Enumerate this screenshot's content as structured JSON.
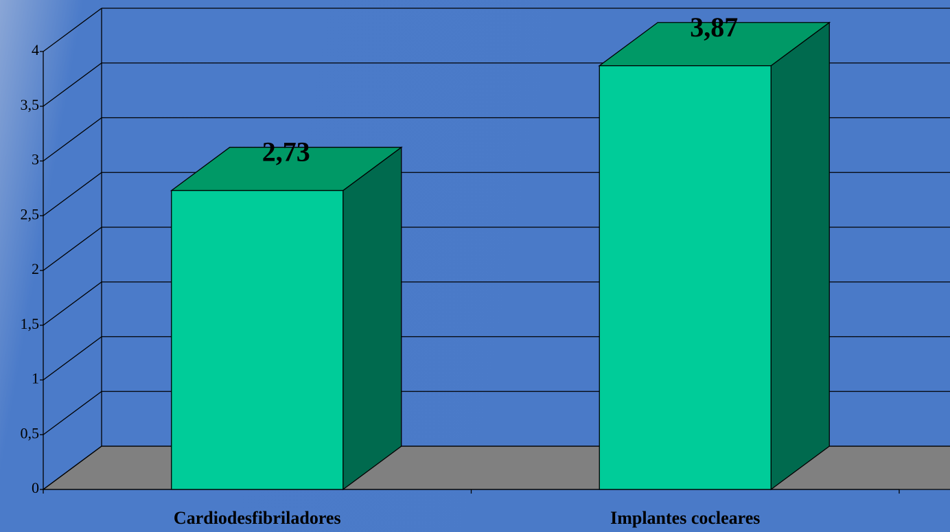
{
  "chart_data": {
    "type": "bar3d",
    "categories": [
      "Cardiodesfibriladores",
      "Implantes cocleares"
    ],
    "values": [
      2.73,
      3.87
    ],
    "value_labels": [
      "2,73",
      "3,87"
    ],
    "color": "#00cc99",
    "ylim": [
      0,
      4
    ],
    "yticks": [
      0,
      {
        "value": 0.5,
        "label": "0,5"
      },
      1,
      {
        "value": 1.5,
        "label": "1,5"
      },
      2,
      {
        "value": 2.5,
        "label": "2,5"
      },
      3,
      {
        "value": 3.5,
        "label": "3,5"
      },
      4
    ],
    "grid": true
  }
}
